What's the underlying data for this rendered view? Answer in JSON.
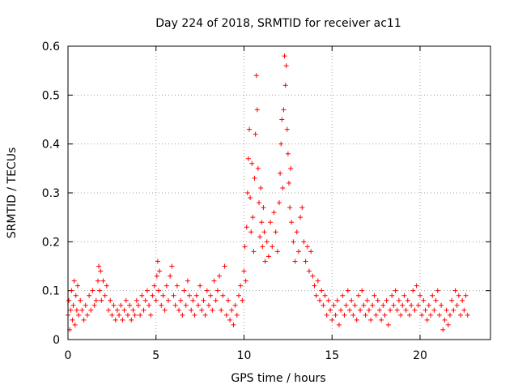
{
  "chart_data": {
    "type": "scatter",
    "title": "Day 224 of 2018, SRMTID for receiver ac11",
    "xlabel": "GPS time / hours",
    "ylabel": "SRMTID / TECUs",
    "xlim": [
      0,
      24
    ],
    "ylim": [
      0,
      0.6
    ],
    "xticks": [
      0,
      5,
      10,
      15,
      20
    ],
    "xtick_labels": [
      "0",
      "5",
      "10",
      "15",
      "20"
    ],
    "yticks": [
      0,
      0.1,
      0.2,
      0.3,
      0.4,
      0.5,
      0.6
    ],
    "ytick_labels": [
      "0",
      "0.1",
      "0.2",
      "0.3",
      "0.4",
      "0.5",
      "0.6"
    ],
    "grid": true,
    "marker": "+",
    "series": [
      {
        "name": "SRMTID",
        "color": "#ff0000",
        "points": [
          [
            0.0,
            0.05
          ],
          [
            0.05,
            0.08
          ],
          [
            0.1,
            0.02
          ],
          [
            0.15,
            0.06
          ],
          [
            0.2,
            0.1
          ],
          [
            0.25,
            0.04
          ],
          [
            0.3,
            0.07
          ],
          [
            0.35,
            0.12
          ],
          [
            0.4,
            0.03
          ],
          [
            0.45,
            0.09
          ],
          [
            0.5,
            0.06
          ],
          [
            0.55,
            0.11
          ],
          [
            0.6,
            0.05
          ],
          [
            0.7,
            0.08
          ],
          [
            0.8,
            0.06
          ],
          [
            0.9,
            0.04
          ],
          [
            1.0,
            0.07
          ],
          [
            1.1,
            0.05
          ],
          [
            1.2,
            0.09
          ],
          [
            1.3,
            0.06
          ],
          [
            1.4,
            0.1
          ],
          [
            1.5,
            0.07
          ],
          [
            1.6,
            0.08
          ],
          [
            1.7,
            0.12
          ],
          [
            1.75,
            0.15
          ],
          [
            1.8,
            0.1
          ],
          [
            1.85,
            0.14
          ],
          [
            1.9,
            0.08
          ],
          [
            2.0,
            0.12
          ],
          [
            2.1,
            0.09
          ],
          [
            2.2,
            0.11
          ],
          [
            2.3,
            0.06
          ],
          [
            2.4,
            0.08
          ],
          [
            2.5,
            0.05
          ],
          [
            2.6,
            0.07
          ],
          [
            2.7,
            0.04
          ],
          [
            2.8,
            0.06
          ],
          [
            2.9,
            0.05
          ],
          [
            3.0,
            0.07
          ],
          [
            3.1,
            0.04
          ],
          [
            3.2,
            0.06
          ],
          [
            3.3,
            0.08
          ],
          [
            3.4,
            0.05
          ],
          [
            3.5,
            0.07
          ],
          [
            3.6,
            0.04
          ],
          [
            3.7,
            0.06
          ],
          [
            3.8,
            0.05
          ],
          [
            3.9,
            0.08
          ],
          [
            4.0,
            0.07
          ],
          [
            4.1,
            0.05
          ],
          [
            4.2,
            0.09
          ],
          [
            4.3,
            0.06
          ],
          [
            4.4,
            0.08
          ],
          [
            4.5,
            0.1
          ],
          [
            4.6,
            0.07
          ],
          [
            4.7,
            0.05
          ],
          [
            4.8,
            0.09
          ],
          [
            4.9,
            0.11
          ],
          [
            5.0,
            0.08
          ],
          [
            5.05,
            0.13
          ],
          [
            5.1,
            0.16
          ],
          [
            5.15,
            0.1
          ],
          [
            5.2,
            0.14
          ],
          [
            5.3,
            0.07
          ],
          [
            5.4,
            0.09
          ],
          [
            5.5,
            0.06
          ],
          [
            5.6,
            0.11
          ],
          [
            5.7,
            0.08
          ],
          [
            5.8,
            0.13
          ],
          [
            5.9,
            0.15
          ],
          [
            6.0,
            0.09
          ],
          [
            6.1,
            0.07
          ],
          [
            6.2,
            0.11
          ],
          [
            6.3,
            0.06
          ],
          [
            6.4,
            0.08
          ],
          [
            6.5,
            0.05
          ],
          [
            6.6,
            0.1
          ],
          [
            6.7,
            0.07
          ],
          [
            6.8,
            0.12
          ],
          [
            6.9,
            0.09
          ],
          [
            7.0,
            0.06
          ],
          [
            7.1,
            0.08
          ],
          [
            7.2,
            0.05
          ],
          [
            7.3,
            0.09
          ],
          [
            7.4,
            0.07
          ],
          [
            7.5,
            0.11
          ],
          [
            7.6,
            0.06
          ],
          [
            7.7,
            0.08
          ],
          [
            7.8,
            0.05
          ],
          [
            7.9,
            0.1
          ],
          [
            8.0,
            0.07
          ],
          [
            8.1,
            0.09
          ],
          [
            8.2,
            0.06
          ],
          [
            8.3,
            0.12
          ],
          [
            8.4,
            0.08
          ],
          [
            8.5,
            0.1
          ],
          [
            8.6,
            0.13
          ],
          [
            8.7,
            0.06
          ],
          [
            8.8,
            0.09
          ],
          [
            8.9,
            0.15
          ],
          [
            9.0,
            0.05
          ],
          [
            9.1,
            0.08
          ],
          [
            9.2,
            0.04
          ],
          [
            9.3,
            0.06
          ],
          [
            9.4,
            0.03
          ],
          [
            9.5,
            0.07
          ],
          [
            9.6,
            0.05
          ],
          [
            9.7,
            0.09
          ],
          [
            9.8,
            0.11
          ],
          [
            9.9,
            0.08
          ],
          [
            10.0,
            0.14
          ],
          [
            10.05,
            0.19
          ],
          [
            10.1,
            0.12
          ],
          [
            10.15,
            0.23
          ],
          [
            10.2,
            0.3
          ],
          [
            10.25,
            0.37
          ],
          [
            10.3,
            0.43
          ],
          [
            10.35,
            0.29
          ],
          [
            10.4,
            0.22
          ],
          [
            10.45,
            0.36
          ],
          [
            10.5,
            0.25
          ],
          [
            10.55,
            0.18
          ],
          [
            10.6,
            0.33
          ],
          [
            10.65,
            0.42
          ],
          [
            10.7,
            0.54
          ],
          [
            10.75,
            0.47
          ],
          [
            10.8,
            0.35
          ],
          [
            10.85,
            0.28
          ],
          [
            10.9,
            0.21
          ],
          [
            10.95,
            0.31
          ],
          [
            11.0,
            0.24
          ],
          [
            11.05,
            0.19
          ],
          [
            11.1,
            0.27
          ],
          [
            11.15,
            0.22
          ],
          [
            11.2,
            0.16
          ],
          [
            11.3,
            0.2
          ],
          [
            11.4,
            0.17
          ],
          [
            11.5,
            0.24
          ],
          [
            11.6,
            0.19
          ],
          [
            11.7,
            0.26
          ],
          [
            11.8,
            0.22
          ],
          [
            11.9,
            0.18
          ],
          [
            12.0,
            0.28
          ],
          [
            12.05,
            0.34
          ],
          [
            12.1,
            0.4
          ],
          [
            12.15,
            0.45
          ],
          [
            12.2,
            0.31
          ],
          [
            12.25,
            0.47
          ],
          [
            12.3,
            0.58
          ],
          [
            12.35,
            0.52
          ],
          [
            12.4,
            0.56
          ],
          [
            12.45,
            0.43
          ],
          [
            12.5,
            0.38
          ],
          [
            12.55,
            0.32
          ],
          [
            12.6,
            0.27
          ],
          [
            12.65,
            0.35
          ],
          [
            12.7,
            0.24
          ],
          [
            12.8,
            0.2
          ],
          [
            12.9,
            0.16
          ],
          [
            13.0,
            0.22
          ],
          [
            13.1,
            0.18
          ],
          [
            13.2,
            0.25
          ],
          [
            13.3,
            0.27
          ],
          [
            13.4,
            0.2
          ],
          [
            13.5,
            0.16
          ],
          [
            13.6,
            0.19
          ],
          [
            13.7,
            0.14
          ],
          [
            13.8,
            0.18
          ],
          [
            13.9,
            0.13
          ],
          [
            14.0,
            0.11
          ],
          [
            14.1,
            0.09
          ],
          [
            14.2,
            0.12
          ],
          [
            14.3,
            0.08
          ],
          [
            14.4,
            0.1
          ],
          [
            14.5,
            0.07
          ],
          [
            14.6,
            0.09
          ],
          [
            14.7,
            0.05
          ],
          [
            14.8,
            0.08
          ],
          [
            14.9,
            0.06
          ],
          [
            15.0,
            0.04
          ],
          [
            15.1,
            0.07
          ],
          [
            15.2,
            0.05
          ],
          [
            15.3,
            0.08
          ],
          [
            15.4,
            0.03
          ],
          [
            15.5,
            0.06
          ],
          [
            15.6,
            0.09
          ],
          [
            15.7,
            0.05
          ],
          [
            15.8,
            0.07
          ],
          [
            15.9,
            0.1
          ],
          [
            16.0,
            0.06
          ],
          [
            16.1,
            0.08
          ],
          [
            16.2,
            0.05
          ],
          [
            16.3,
            0.07
          ],
          [
            16.4,
            0.04
          ],
          [
            16.5,
            0.09
          ],
          [
            16.6,
            0.06
          ],
          [
            16.7,
            0.1
          ],
          [
            16.8,
            0.07
          ],
          [
            16.9,
            0.05
          ],
          [
            17.0,
            0.08
          ],
          [
            17.1,
            0.06
          ],
          [
            17.2,
            0.04
          ],
          [
            17.3,
            0.07
          ],
          [
            17.4,
            0.09
          ],
          [
            17.5,
            0.05
          ],
          [
            17.6,
            0.08
          ],
          [
            17.7,
            0.06
          ],
          [
            17.8,
            0.04
          ],
          [
            17.9,
            0.07
          ],
          [
            18.0,
            0.05
          ],
          [
            18.1,
            0.08
          ],
          [
            18.2,
            0.03
          ],
          [
            18.3,
            0.06
          ],
          [
            18.4,
            0.09
          ],
          [
            18.5,
            0.07
          ],
          [
            18.6,
            0.1
          ],
          [
            18.7,
            0.06
          ],
          [
            18.8,
            0.08
          ],
          [
            18.9,
            0.05
          ],
          [
            19.0,
            0.07
          ],
          [
            19.1,
            0.09
          ],
          [
            19.2,
            0.06
          ],
          [
            19.3,
            0.08
          ],
          [
            19.4,
            0.05
          ],
          [
            19.5,
            0.07
          ],
          [
            19.6,
            0.1
          ],
          [
            19.7,
            0.06
          ],
          [
            19.8,
            0.11
          ],
          [
            19.9,
            0.07
          ],
          [
            20.0,
            0.09
          ],
          [
            20.1,
            0.05
          ],
          [
            20.2,
            0.08
          ],
          [
            20.3,
            0.06
          ],
          [
            20.4,
            0.04
          ],
          [
            20.5,
            0.07
          ],
          [
            20.6,
            0.05
          ],
          [
            20.7,
            0.09
          ],
          [
            20.8,
            0.06
          ],
          [
            20.9,
            0.08
          ],
          [
            21.0,
            0.1
          ],
          [
            21.1,
            0.05
          ],
          [
            21.2,
            0.07
          ],
          [
            21.3,
            0.02
          ],
          [
            21.4,
            0.04
          ],
          [
            21.5,
            0.06
          ],
          [
            21.6,
            0.03
          ],
          [
            21.7,
            0.05
          ],
          [
            21.8,
            0.08
          ],
          [
            21.9,
            0.06
          ],
          [
            22.0,
            0.1
          ],
          [
            22.1,
            0.07
          ],
          [
            22.2,
            0.09
          ],
          [
            22.3,
            0.05
          ],
          [
            22.4,
            0.08
          ],
          [
            22.5,
            0.06
          ],
          [
            22.6,
            0.09
          ],
          [
            22.7,
            0.05
          ]
        ]
      }
    ]
  }
}
